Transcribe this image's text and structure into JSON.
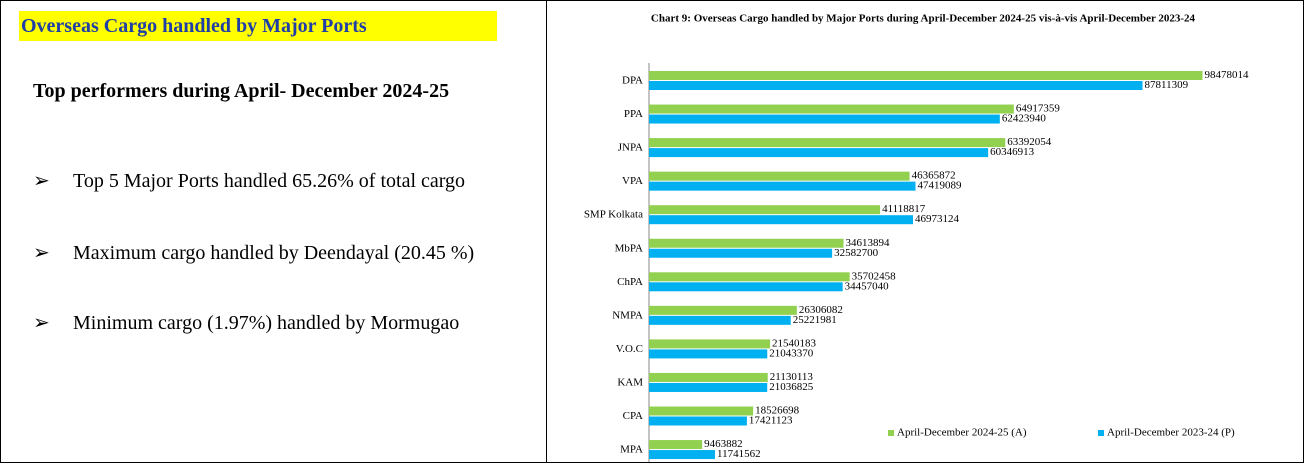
{
  "panel": {
    "title": "Overseas Cargo handled by Major Ports",
    "subtitle": "Top performers during April- December 2024-25",
    "bullets": [
      "Top 5 Major Ports handled 65.26% of total cargo",
      "Maximum cargo handled by Deendayal (20.45 %)",
      "Minimum cargo (1.97%) handled by Mormugao"
    ]
  },
  "chart_data": {
    "type": "hbar",
    "title": "Chart 9: Overseas Cargo handled by Major Ports during April-December 2024-25 vis-à-vis April-December 2023-24",
    "categories": [
      "DPA",
      "PPA",
      "JNPA",
      "VPA",
      "SMP Kolkata",
      "MbPA",
      "ChPA",
      "NMPA",
      "V.O.C",
      "KAM",
      "CPA",
      "MPA"
    ],
    "series": [
      {
        "name": "April-December 2024-25 (A)",
        "color": "#92d050",
        "values": [
          98478014,
          64917359,
          63392054,
          46365872,
          41118817,
          34613894,
          35702458,
          26306082,
          21540183,
          21130113,
          18526698,
          9463882
        ]
      },
      {
        "name": "April-December 2023-24 (P)",
        "color": "#00b0f0",
        "values": [
          87811309,
          62423940,
          60346913,
          47419089,
          46973124,
          32582700,
          34457040,
          25221981,
          21043370,
          21036825,
          17421123,
          11741562
        ]
      }
    ],
    "xlim": [
      0,
      100000000
    ],
    "legend": "bottom-right"
  }
}
